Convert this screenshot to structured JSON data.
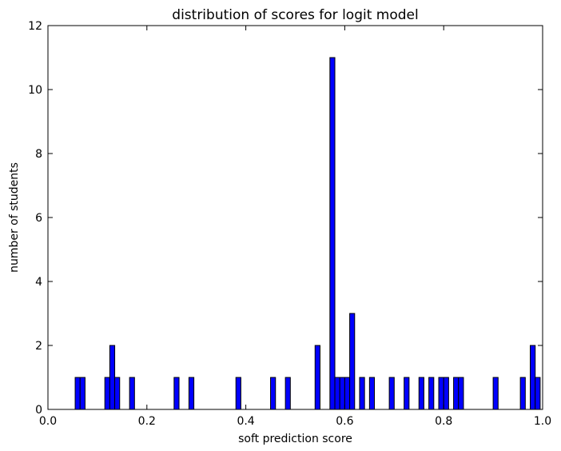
{
  "chart_data": {
    "type": "bar",
    "title": "distribution of scores for logit model",
    "xlabel": "soft prediction score",
    "ylabel": "number of students",
    "xlim": [
      0.0,
      1.0
    ],
    "ylim": [
      0,
      12
    ],
    "xticks": [
      "0.0",
      "0.2",
      "0.4",
      "0.6",
      "0.8",
      "1.0"
    ],
    "yticks": [
      "0",
      "2",
      "4",
      "6",
      "8",
      "10",
      "12"
    ],
    "grid": false,
    "legend": "none",
    "bar_color": "#0000ff",
    "bar_edge_color": "#000000",
    "bin_width": 0.01,
    "bars": [
      {
        "x": 0.055,
        "value": 1
      },
      {
        "x": 0.065,
        "value": 1
      },
      {
        "x": 0.115,
        "value": 1
      },
      {
        "x": 0.125,
        "value": 2
      },
      {
        "x": 0.135,
        "value": 1
      },
      {
        "x": 0.165,
        "value": 1
      },
      {
        "x": 0.255,
        "value": 1
      },
      {
        "x": 0.285,
        "value": 1
      },
      {
        "x": 0.38,
        "value": 1
      },
      {
        "x": 0.45,
        "value": 1
      },
      {
        "x": 0.48,
        "value": 1
      },
      {
        "x": 0.54,
        "value": 2
      },
      {
        "x": 0.57,
        "value": 11
      },
      {
        "x": 0.58,
        "value": 1
      },
      {
        "x": 0.59,
        "value": 1
      },
      {
        "x": 0.6,
        "value": 1
      },
      {
        "x": 0.61,
        "value": 3
      },
      {
        "x": 0.63,
        "value": 1
      },
      {
        "x": 0.65,
        "value": 1
      },
      {
        "x": 0.69,
        "value": 1
      },
      {
        "x": 0.72,
        "value": 1
      },
      {
        "x": 0.75,
        "value": 1
      },
      {
        "x": 0.77,
        "value": 1
      },
      {
        "x": 0.79,
        "value": 1
      },
      {
        "x": 0.8,
        "value": 1
      },
      {
        "x": 0.82,
        "value": 1
      },
      {
        "x": 0.83,
        "value": 1
      },
      {
        "x": 0.9,
        "value": 1
      },
      {
        "x": 0.955,
        "value": 1
      },
      {
        "x": 0.975,
        "value": 2
      },
      {
        "x": 0.985,
        "value": 1
      }
    ]
  }
}
